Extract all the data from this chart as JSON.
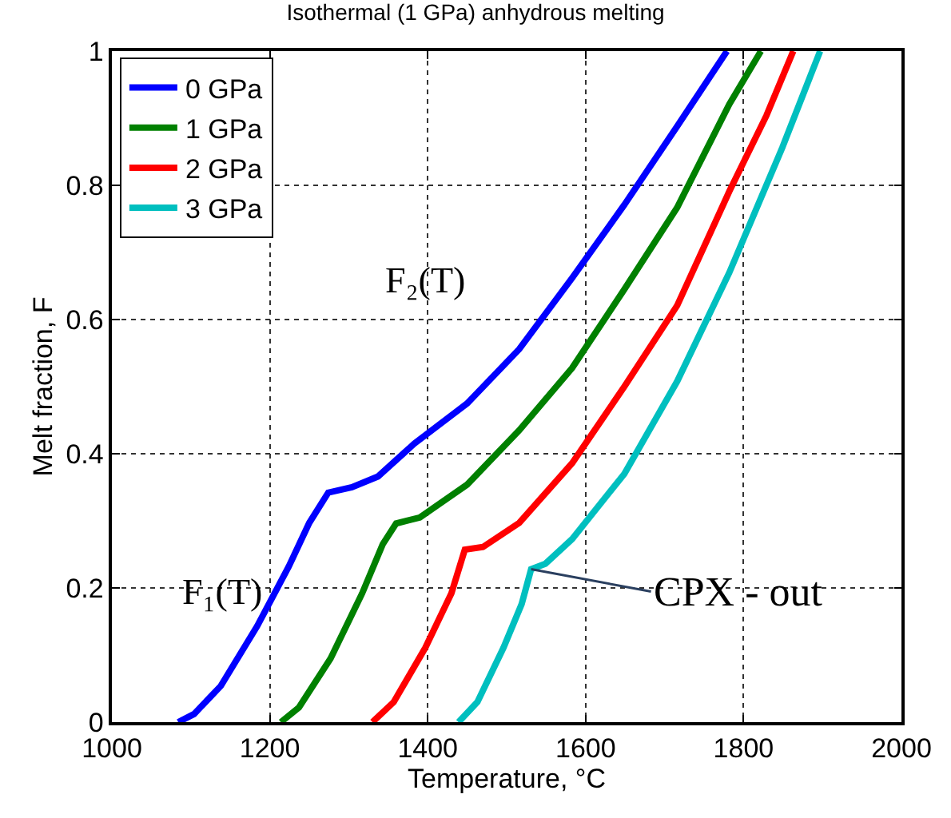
{
  "chart_data": {
    "type": "line",
    "title": "Isothermal (1 GPa) anhydrous melting",
    "xlabel": "Temperature, °C",
    "ylabel": "Melt fraction, F",
    "xlim": [
      1000,
      2000
    ],
    "xticks": [
      1000,
      1200,
      1400,
      1600,
      1800,
      2000
    ],
    "ylim": [
      0,
      1
    ],
    "yticks": [
      0,
      0.2,
      0.4,
      0.6,
      0.8,
      1
    ],
    "grid": true,
    "legend": "top left",
    "marker": "none",
    "line_style": "solid",
    "series": [
      {
        "name": "0 GPa",
        "color": "#0000ff",
        "x": [
          1084,
          1104,
          1138,
          1184,
          1224,
          1250,
          1274,
          1304,
          1337,
          1383,
          1450,
          1516,
          1583,
          1649,
          1716,
          1779
        ],
        "values": [
          0,
          0.012,
          0.054,
          0.143,
          0.232,
          0.297,
          0.342,
          0.35,
          0.366,
          0.415,
          0.475,
          0.556,
          0.662,
          0.771,
          0.888,
          1
        ]
      },
      {
        "name": "1 GPa",
        "color": "#008000",
        "x": [
          1214,
          1237,
          1277,
          1317,
          1343,
          1360,
          1390,
          1450,
          1516,
          1583,
          1649,
          1716,
          1782,
          1822
        ],
        "values": [
          0,
          0.022,
          0.095,
          0.192,
          0.265,
          0.296,
          0.305,
          0.354,
          0.435,
          0.528,
          0.645,
          0.767,
          0.921,
          1
        ]
      },
      {
        "name": "2 GPa",
        "color": "#ff0000",
        "x": [
          1330,
          1357,
          1397,
          1430,
          1447,
          1470,
          1516,
          1583,
          1649,
          1716,
          1782,
          1829,
          1863
        ],
        "values": [
          0,
          0.03,
          0.111,
          0.192,
          0.257,
          0.261,
          0.297,
          0.386,
          0.5,
          0.621,
          0.791,
          0.904,
          1
        ]
      },
      {
        "name": "3 GPa",
        "color": "#00bfbf",
        "x": [
          1439,
          1463,
          1496,
          1519,
          1531,
          1549,
          1583,
          1649,
          1716,
          1782,
          1849,
          1897
        ],
        "values": [
          0,
          0.03,
          0.111,
          0.176,
          0.228,
          0.236,
          0.273,
          0.37,
          0.508,
          0.67,
          0.856,
          1
        ]
      }
    ],
    "annotations": [
      "F₁(T)",
      "F₂(T)",
      {
        "text": "CPX - out",
        "x": 1531,
        "y": 0.228
      }
    ]
  }
}
